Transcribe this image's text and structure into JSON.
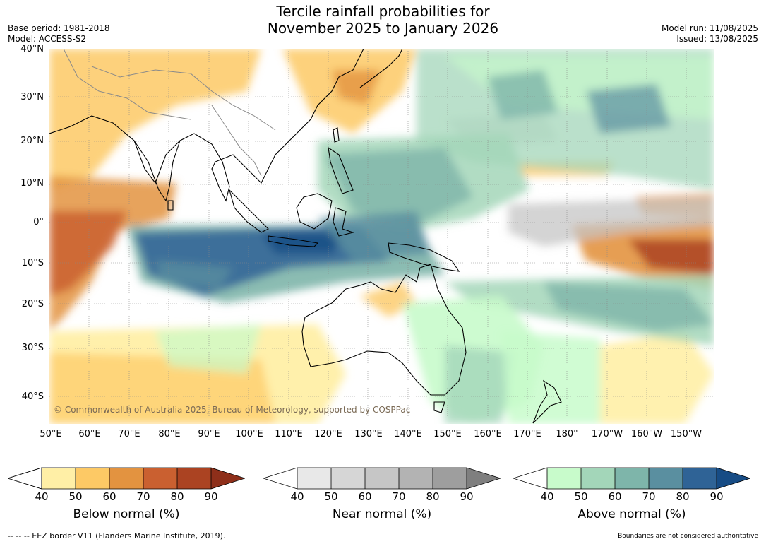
{
  "title_line1": "Tercile rainfall probabilities for",
  "title_line2": "November 2025 to January 2026",
  "meta_left": {
    "base_period": "Base period: 1981-2018",
    "model": "Model: ACCESS-S2"
  },
  "meta_right": {
    "model_run": "Model run: 11/08/2025",
    "issued": "Issued: 13/08/2025"
  },
  "credit": "© Commonwealth of Australia 2025, Bureau of Meteorology, supported by COSPPac",
  "lat_labels": [
    "40°N",
    "30°N",
    "20°N",
    "10°N",
    "0°",
    "10°S",
    "20°S",
    "30°S",
    "40°S"
  ],
  "lon_labels": [
    "50°E",
    "60°E",
    "70°E",
    "80°E",
    "90°E",
    "100°E",
    "110°E",
    "120°E",
    "130°E",
    "140°E",
    "150°E",
    "160°E",
    "170°E",
    "180°",
    "170°W",
    "160°W",
    "150°W"
  ],
  "legends": [
    {
      "title": "Below normal (%)",
      "ticks": [
        "40",
        "50",
        "60",
        "70",
        "80",
        "90"
      ],
      "colors": [
        "#ffefa6",
        "#fdc965",
        "#e39340",
        "#ca6030",
        "#ab4322",
        "#8e2f1a"
      ]
    },
    {
      "title": "Near normal (%)",
      "ticks": [
        "40",
        "50",
        "60",
        "70",
        "80",
        "90"
      ],
      "colors": [
        "#e8e8e8",
        "#d6d6d6",
        "#c6c6c6",
        "#b3b3b3",
        "#9e9e9e",
        "#7f7f7f"
      ]
    },
    {
      "title": "Above normal (%)",
      "ticks": [
        "40",
        "50",
        "60",
        "70",
        "80",
        "90"
      ],
      "colors": [
        "#c8fbcb",
        "#a3d6b9",
        "#7eb5aa",
        "#5a8fa0",
        "#2f6396",
        "#174c85"
      ]
    }
  ],
  "eez_note": "--  --  -- EEZ border V11 (Flanders Marine Institute, 2019).",
  "boundary_note": "Boundaries are not considered authoritative"
}
